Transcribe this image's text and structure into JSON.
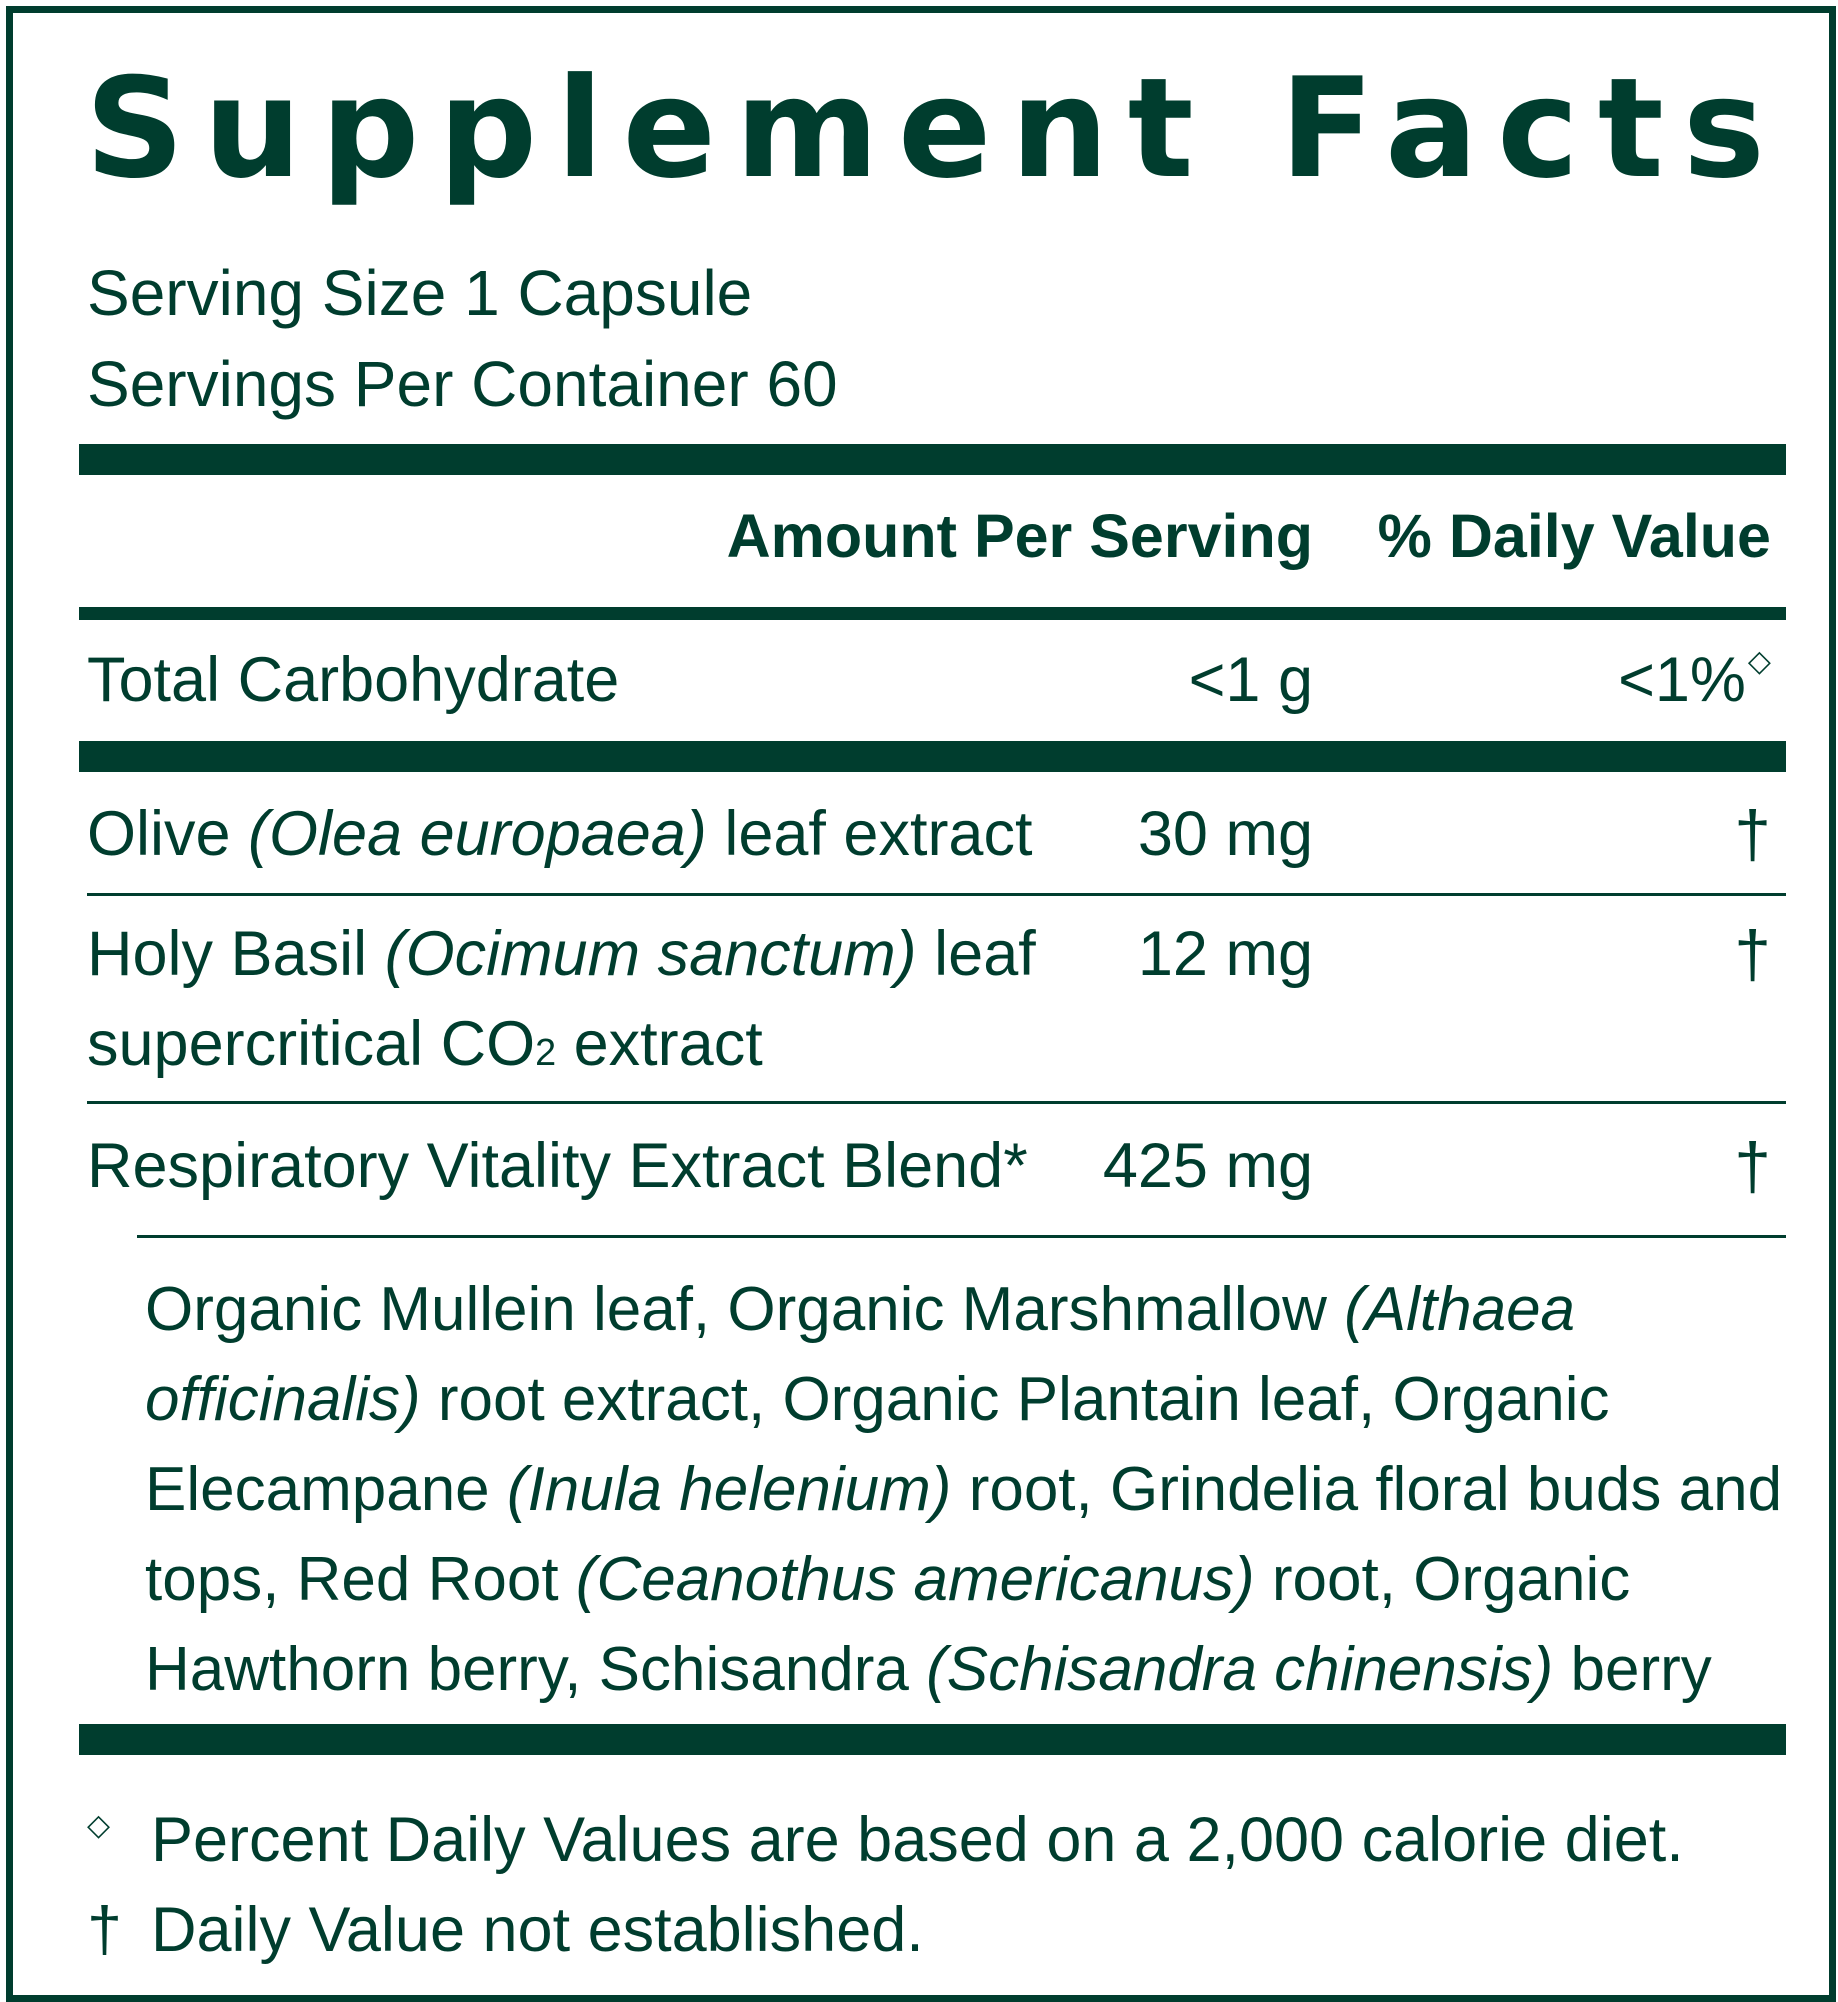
{
  "title": "Supplement Facts",
  "serving_size": "Serving Size 1 Capsule",
  "servings_per_container": "Servings Per Container 60",
  "headers": {
    "amount": "Amount Per Serving",
    "daily_value": "% Daily Value"
  },
  "rows": [
    {
      "name": "Total Carbohydrate",
      "amount": "<1 g",
      "dv": "<1%",
      "dv_symbol": "◇"
    },
    {
      "name_plain": "Olive ",
      "name_italic": "(Olea europaea)",
      "name_rest": " leaf extract",
      "amount": "30 mg",
      "dv": "†"
    },
    {
      "name_plain": "Holy Basil ",
      "name_italic": "(Ocimum sanctum)",
      "name_rest": " leaf",
      "name_line2": "supercritical CO",
      "name_line2_sub": "2",
      "name_line2_rest": " extract",
      "amount": "12 mg",
      "dv": "†"
    },
    {
      "name": "Respiratory Vitality Extract Blend*",
      "amount": "425 mg",
      "dv": "†"
    }
  ],
  "blend_ingredients": {
    "p1": "Organic Mullein leaf, Organic Marshmallow ",
    "i1": "(Althaea officinalis)",
    "p2": " root extract, Organic Plantain leaf, Organic Elecampane ",
    "i2": "(Inula helenium)",
    "p3": " root, Grindelia floral buds and tops, Red Root ",
    "i3": "(Ceanothus americanus)",
    "p4": " root, Organic Hawthorn berry, Schisandra ",
    "i4": "(Schisandra chinensis)",
    "p5": " berry"
  },
  "footnotes": [
    {
      "symbol": "◇",
      "text": "Percent Daily Values are based on a 2,000 calorie diet."
    },
    {
      "symbol": "†",
      "text": "Daily Value not established."
    }
  ],
  "colors": {
    "ink": "#003d2e",
    "background": "#ffffff"
  }
}
